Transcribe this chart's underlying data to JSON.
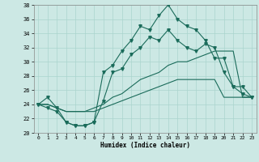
{
  "xlabel": "Humidex (Indice chaleur)",
  "xlim": [
    -0.5,
    23.5
  ],
  "ylim": [
    20,
    38
  ],
  "yticks": [
    20,
    22,
    24,
    26,
    28,
    30,
    32,
    34,
    36,
    38
  ],
  "xticks": [
    0,
    1,
    2,
    3,
    4,
    5,
    6,
    7,
    8,
    9,
    10,
    11,
    12,
    13,
    14,
    15,
    16,
    17,
    18,
    19,
    20,
    21,
    22,
    23
  ],
  "bg_color": "#cce8e4",
  "grid_color": "#aad4ce",
  "line_color": "#1a6b5a",
  "x": [
    0,
    1,
    2,
    3,
    4,
    5,
    6,
    7,
    8,
    9,
    10,
    11,
    12,
    13,
    14,
    15,
    16,
    17,
    18,
    19,
    20,
    21,
    22,
    23
  ],
  "y_main": [
    24,
    25,
    23.5,
    21.5,
    21.0,
    21.0,
    21.5,
    28.5,
    29.5,
    31.5,
    33.0,
    35.0,
    34.5,
    36.5,
    38.0,
    36.0,
    35.0,
    34.5,
    33.0,
    30.5,
    30.5,
    26.5,
    25.5,
    25.0
  ],
  "y_marked2": [
    24,
    23.5,
    23.0,
    21.5,
    21.0,
    21.0,
    21.5,
    24.5,
    28.5,
    29.0,
    31.0,
    32.0,
    33.5,
    33.0,
    34.5,
    33.0,
    32.0,
    31.5,
    32.5,
    32.0,
    28.5,
    26.5,
    26.5,
    25.0
  ],
  "y_ref1": [
    24,
    24.0,
    23.5,
    23.0,
    23.0,
    23.0,
    23.5,
    24.0,
    25.0,
    25.5,
    26.5,
    27.5,
    28.0,
    28.5,
    29.5,
    30.0,
    30.0,
    30.5,
    31.0,
    31.5,
    31.5,
    31.5,
    25.0,
    25.0
  ],
  "y_ref2": [
    24,
    24.0,
    23.5,
    23.0,
    23.0,
    23.0,
    23.0,
    23.5,
    24.0,
    24.5,
    25.0,
    25.5,
    26.0,
    26.5,
    27.0,
    27.5,
    27.5,
    27.5,
    27.5,
    27.5,
    25.0,
    25.0,
    25.0,
    25.0
  ]
}
